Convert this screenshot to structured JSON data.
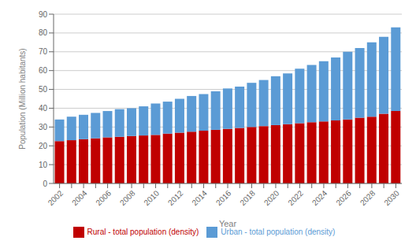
{
  "chart_data": {
    "type": "bar",
    "stacked": true,
    "grid": true,
    "legend": "bottom",
    "xlabel": "Year",
    "ylabel": "Population (Million habitants)",
    "categories": [
      "2002",
      null,
      "2004",
      null,
      "2006",
      null,
      "2008",
      null,
      "2010",
      null,
      "2012",
      null,
      "2014",
      null,
      "2016",
      null,
      "2018",
      null,
      "2020",
      null,
      "2022",
      null,
      "2024",
      null,
      "2026",
      null,
      "2028",
      null,
      "2030"
    ],
    "series": [
      {
        "name": "Rural - total population (density)",
        "color": "#C00000",
        "values": [
          22.5,
          23.0,
          23.5,
          24.0,
          24.5,
          24.8,
          25.2,
          25.5,
          25.8,
          26.5,
          27.0,
          27.5,
          28.0,
          28.5,
          29.0,
          29.5,
          30.0,
          30.5,
          31.0,
          31.5,
          32.0,
          32.5,
          33.0,
          33.5,
          34.0,
          35.0,
          35.5,
          37.0,
          38.5
        ]
      },
      {
        "name": "Urban - total population (density)",
        "color": "#5B9BD5",
        "values": [
          11.5,
          12.5,
          13.0,
          13.5,
          14.0,
          14.7,
          14.8,
          15.5,
          16.7,
          17.0,
          18.0,
          19.0,
          19.5,
          20.5,
          21.5,
          22.0,
          23.5,
          24.5,
          26.0,
          27.0,
          29.0,
          30.5,
          32.0,
          33.5,
          36.0,
          37.0,
          39.5,
          41.0,
          44.5
        ]
      }
    ],
    "ylim": [
      0,
      90
    ],
    "yticks": [
      0,
      10,
      20,
      30,
      40,
      50,
      60,
      70,
      80,
      90
    ]
  }
}
